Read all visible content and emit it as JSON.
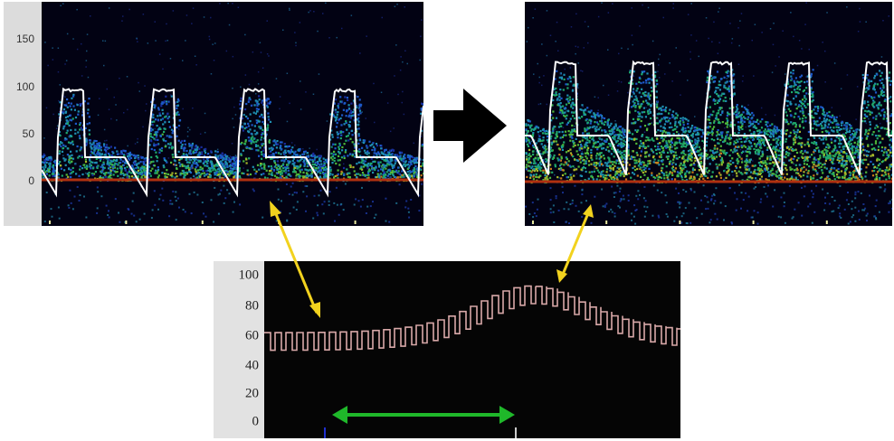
{
  "top_panels": {
    "y_ticks": [
      "150",
      "100",
      "50",
      "0"
    ]
  },
  "bottom_chart": {
    "y_ticks": [
      "100",
      "80",
      "60",
      "40",
      "20",
      "0"
    ]
  },
  "colors": {
    "doppler_background": "#020213",
    "envelope": "#ffffff",
    "baseline": "#b03010",
    "signal_trace": "#d8a8a8",
    "correspondence_arrow": "#f2d21e",
    "interval_arrow": "#1fb82a",
    "transition_arrow": "#000000"
  },
  "icons": [
    "right-arrow-icon",
    "double-headed-arrow-icon"
  ]
}
